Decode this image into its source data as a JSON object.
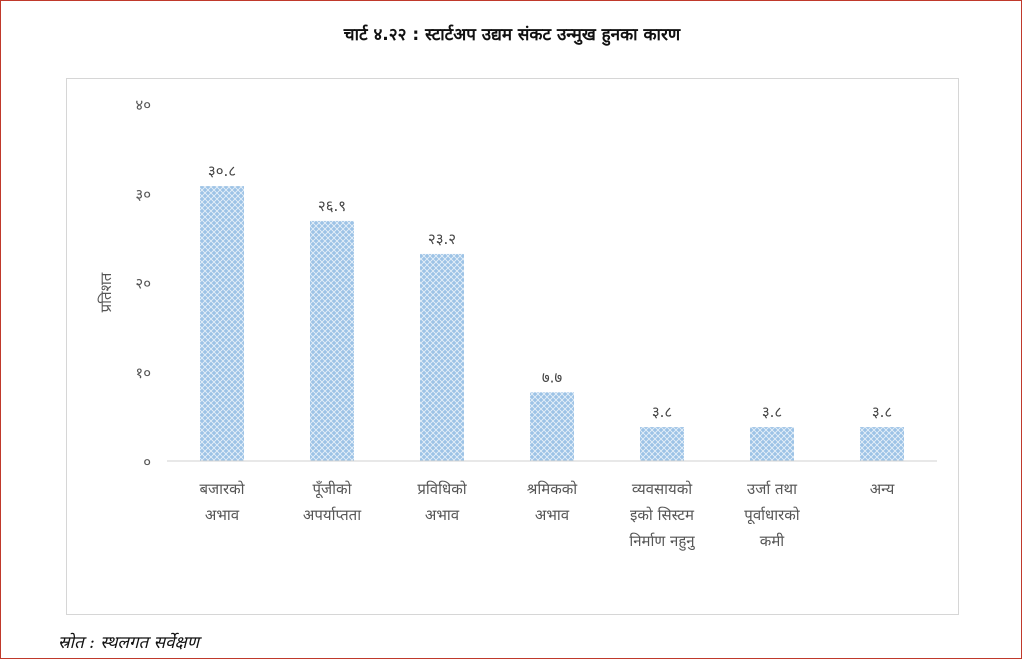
{
  "page": {
    "title": "चार्ट ४.२२ : स्टार्टअप उद्यम संकट उन्मुख हुनका कारण",
    "source": "स्रोत : स्थलगत सर्वेक्षण"
  },
  "chart_data": {
    "type": "bar",
    "title": "",
    "ylabel": "प्रतिशत",
    "xlabel": "",
    "ylim": [
      0,
      40
    ],
    "yticks": [
      0,
      10,
      20,
      30,
      40
    ],
    "ytick_labels": [
      "०",
      "१०",
      "२०",
      "३०",
      "४०"
    ],
    "grid": false,
    "legend": "none",
    "bar_color": "#9dc3e6",
    "bar_pattern": "crosshatch",
    "categories": [
      [
        "बजारको",
        "अभाव"
      ],
      [
        "पूँजीको",
        "अपर्याप्तता"
      ],
      [
        "प्रविधिको",
        "अभाव"
      ],
      [
        "श्रमिकको",
        "अभाव"
      ],
      [
        "व्यवसायको",
        "इको सिस्टम",
        "निर्माण नहुनु"
      ],
      [
        "उर्जा तथा",
        "पूर्वाधारको",
        "कमी"
      ],
      [
        "अन्य"
      ]
    ],
    "values": [
      30.8,
      26.9,
      23.2,
      7.7,
      3.8,
      3.8,
      3.8
    ],
    "data_labels": [
      "३०.८",
      "२६.९",
      "२३.२",
      "७.७",
      "३.८",
      "३.८",
      "३.८"
    ]
  }
}
